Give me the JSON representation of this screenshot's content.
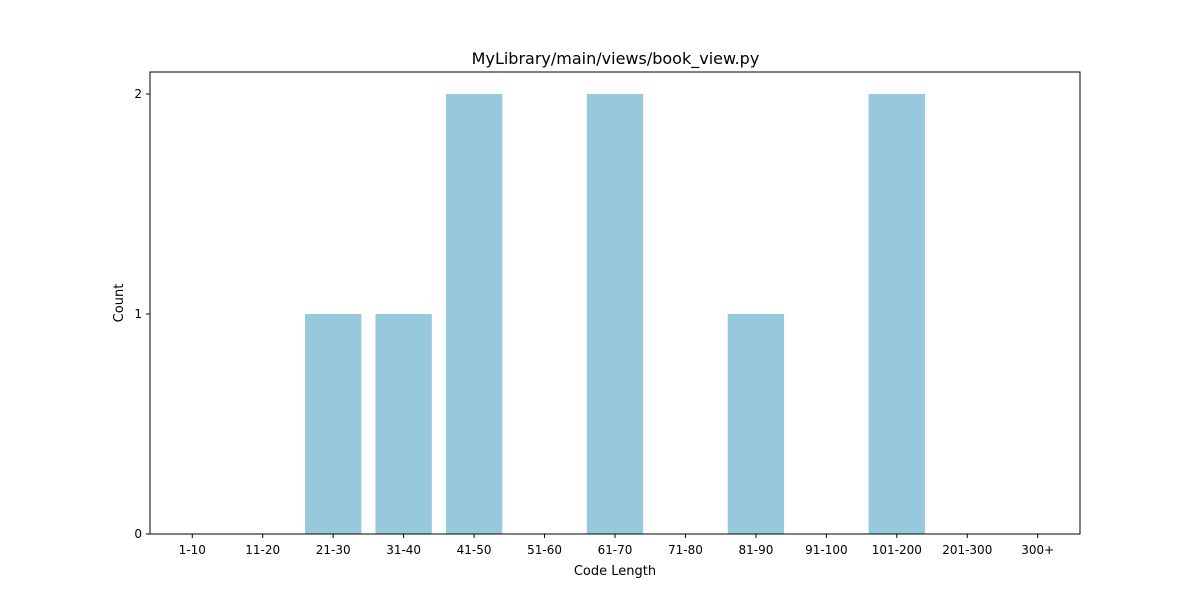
{
  "chart_data": {
    "type": "bar",
    "title": "MyLibrary/main/views/book_view.py",
    "xlabel": "Code Length",
    "ylabel": "Count",
    "categories": [
      "1-10",
      "11-20",
      "21-30",
      "31-40",
      "41-50",
      "51-60",
      "61-70",
      "71-80",
      "81-90",
      "91-100",
      "101-200",
      "201-300",
      "300+"
    ],
    "values": [
      0,
      0,
      1,
      1,
      2,
      0,
      2,
      0,
      1,
      0,
      2,
      0,
      0
    ],
    "yticks": [
      0,
      1,
      2
    ],
    "ylim": [
      0,
      2.1
    ],
    "grid": false,
    "legend": "none",
    "bar_color": "#96c9dc"
  }
}
